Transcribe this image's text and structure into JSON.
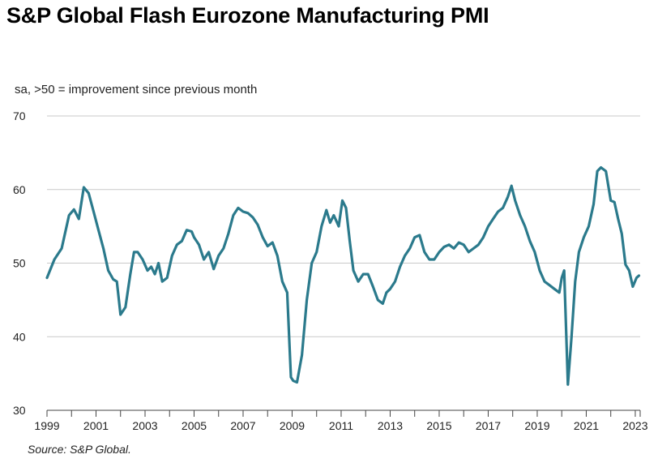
{
  "chart_data": {
    "type": "line",
    "title": "S&P Global Flash Eurozone Manufacturing PMI",
    "subtitle": "sa, >50 = improvement  since previous  month",
    "source": "Source:  S&P Global.",
    "ylim": [
      30,
      70
    ],
    "yticks": [
      30,
      40,
      50,
      60,
      70
    ],
    "xlim": [
      1999.0,
      2023.2
    ],
    "xticks": [
      1999,
      2001,
      2003,
      2005,
      2007,
      2009,
      2011,
      2013,
      2015,
      2017,
      2019,
      2021,
      2023
    ],
    "grid": true,
    "line_color": "#2b7a8c",
    "series": [
      {
        "x": [
          1999.0,
          1999.3,
          1999.6,
          1999.9,
          2000.1,
          2000.3,
          2000.5,
          2000.7,
          2000.9,
          2001.1,
          2001.3,
          2001.5,
          2001.7,
          2001.85,
          2002.0,
          2002.2,
          2002.4,
          2002.55,
          2002.7,
          2002.9,
          2003.1,
          2003.25,
          2003.4,
          2003.55,
          2003.7,
          2003.9,
          2004.1,
          2004.3,
          2004.5,
          2004.7,
          2004.9,
          2005.0,
          2005.2,
          2005.4,
          2005.6,
          2005.8,
          2006.0,
          2006.2,
          2006.4,
          2006.6,
          2006.8,
          2007.0,
          2007.2,
          2007.4,
          2007.6,
          2007.8,
          2008.0,
          2008.2,
          2008.4,
          2008.6,
          2008.8,
          2008.95,
          2009.05,
          2009.2,
          2009.4,
          2009.6,
          2009.8,
          2010.0,
          2010.2,
          2010.4,
          2010.55,
          2010.7,
          2010.9,
          2011.05,
          2011.2,
          2011.35,
          2011.5,
          2011.7,
          2011.9,
          2012.1,
          2012.3,
          2012.5,
          2012.7,
          2012.85,
          2013.0,
          2013.2,
          2013.4,
          2013.6,
          2013.8,
          2014.0,
          2014.2,
          2014.4,
          2014.6,
          2014.8,
          2015.0,
          2015.2,
          2015.4,
          2015.6,
          2015.8,
          2016.0,
          2016.2,
          2016.4,
          2016.6,
          2016.8,
          2017.0,
          2017.2,
          2017.4,
          2017.6,
          2017.8,
          2017.95,
          2018.1,
          2018.3,
          2018.5,
          2018.7,
          2018.9,
          2019.1,
          2019.3,
          2019.5,
          2019.7,
          2019.9,
          2020.0,
          2020.1,
          2020.25,
          2020.4,
          2020.55,
          2020.7,
          2020.9,
          2021.1,
          2021.3,
          2021.45,
          2021.6,
          2021.8,
          2022.0,
          2022.15,
          2022.3,
          2022.45,
          2022.6,
          2022.75,
          2022.9,
          2023.05,
          2023.15
        ],
        "y": [
          48.0,
          50.5,
          52.0,
          56.5,
          57.3,
          56.0,
          60.3,
          59.5,
          57.0,
          54.5,
          52.0,
          49.0,
          47.8,
          47.5,
          43.0,
          44.0,
          48.5,
          51.5,
          51.5,
          50.5,
          49.0,
          49.5,
          48.5,
          50.0,
          47.5,
          48.0,
          51.0,
          52.5,
          53.0,
          54.5,
          54.3,
          53.5,
          52.5,
          50.5,
          51.5,
          49.2,
          51.0,
          52.0,
          54.0,
          56.5,
          57.5,
          57.0,
          56.8,
          56.2,
          55.2,
          53.5,
          52.3,
          52.8,
          51.0,
          47.5,
          46.0,
          34.5,
          34.0,
          33.8,
          37.5,
          45.0,
          50.0,
          51.5,
          55.0,
          57.2,
          55.5,
          56.5,
          55.0,
          58.5,
          57.5,
          53.0,
          49.0,
          47.5,
          48.5,
          48.5,
          46.8,
          45.0,
          44.5,
          46.0,
          46.5,
          47.5,
          49.5,
          51.0,
          52.0,
          53.5,
          53.8,
          51.5,
          50.5,
          50.5,
          51.5,
          52.2,
          52.5,
          52.0,
          52.8,
          52.5,
          51.5,
          52.0,
          52.5,
          53.5,
          55.0,
          56.0,
          57.0,
          57.5,
          59.0,
          60.5,
          58.5,
          56.5,
          55.0,
          53.0,
          51.5,
          49.0,
          47.5,
          47.0,
          46.5,
          46.0,
          48.0,
          49.0,
          33.5,
          40.0,
          47.5,
          51.5,
          53.5,
          55.0,
          58.0,
          62.5,
          63.0,
          62.5,
          58.5,
          58.3,
          56.0,
          54.0,
          49.8,
          49.0,
          46.8,
          48.0,
          48.3
        ]
      }
    ]
  }
}
